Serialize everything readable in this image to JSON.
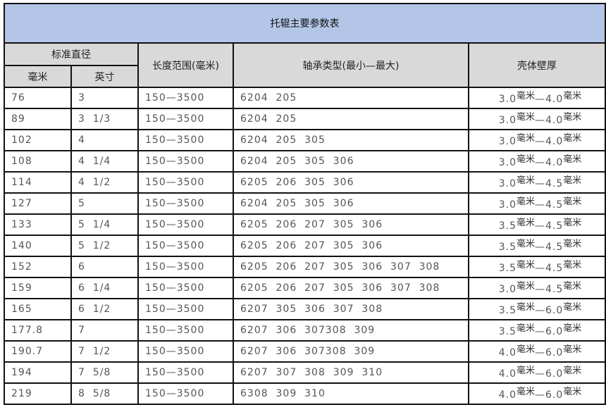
{
  "title": "托辊主要参数表",
  "headers": {
    "diameter": "标准直径",
    "mm": "毫米",
    "inch": "英寸",
    "length": "长度范围(毫米)",
    "bearing": "轴承类型(最小—最大)",
    "wall": "壳体壁厚"
  },
  "unit": "毫米",
  "rows": [
    {
      "mm": "76",
      "inch": "3",
      "length": "150—3500",
      "bearing": "6204  205",
      "wmin": "3.0",
      "wmax": "4.0"
    },
    {
      "mm": "89",
      "inch": "3  1/3",
      "length": "150—3500",
      "bearing": "6204  205",
      "wmin": "3.0",
      "wmax": "4.0"
    },
    {
      "mm": "102",
      "inch": "4",
      "length": "150—3500",
      "bearing": "6204  205  305",
      "wmin": "3.0",
      "wmax": "4.0"
    },
    {
      "mm": "108",
      "inch": "4  1/4",
      "length": "150—3500",
      "bearing": "6204  205  305  306",
      "wmin": "3.0",
      "wmax": "4.0"
    },
    {
      "mm": "114",
      "inch": "4  1/2",
      "length": "150—3500",
      "bearing": "6205  206  305  306",
      "wmin": "3.0",
      "wmax": "4.5"
    },
    {
      "mm": "127",
      "inch": "5",
      "length": "150—3500",
      "bearing": "6204  205  305  306",
      "wmin": "3.0",
      "wmax": "4.5"
    },
    {
      "mm": "133",
      "inch": "5  1/4",
      "length": "150—3500",
      "bearing": "6205  206  207  305  306",
      "wmin": "3.5",
      "wmax": "4.5"
    },
    {
      "mm": "140",
      "inch": "5  1/2",
      "length": "150—3500",
      "bearing": "6205  206  207  305  306",
      "wmin": "3.5",
      "wmax": "4.5"
    },
    {
      "mm": "152",
      "inch": "6",
      "length": "150—3500",
      "bearing": "6205  206  207  305  306  307  308",
      "wmin": "3.5",
      "wmax": "4.5"
    },
    {
      "mm": "159",
      "inch": "6  1/4",
      "length": "150—3500",
      "bearing": "6205  206  207  305  306  307  308",
      "wmin": "3.0",
      "wmax": "4.5"
    },
    {
      "mm": "165",
      "inch": "6  1/2",
      "length": "150—3500",
      "bearing": "6207  305  306  307  308",
      "wmin": "3.5",
      "wmax": "6.0"
    },
    {
      "mm": "177.8",
      "inch": "7",
      "length": "150—3500",
      "bearing": "6207  306  307308  309",
      "wmin": "3.5",
      "wmax": "6.0"
    },
    {
      "mm": "190.7",
      "inch": "7  1/2",
      "length": "150—3500",
      "bearing": "6207  306  307308  309",
      "wmin": "4.0",
      "wmax": "6.0"
    },
    {
      "mm": "194",
      "inch": "7  5/8",
      "length": "150—3500",
      "bearing": "6207  307  308  309  310",
      "wmin": "4.0",
      "wmax": "6.0"
    },
    {
      "mm": "219",
      "inch": "8  5/8",
      "length": "150—3500",
      "bearing": "6308  309  310",
      "wmin": "4.0",
      "wmax": "6.0"
    }
  ]
}
